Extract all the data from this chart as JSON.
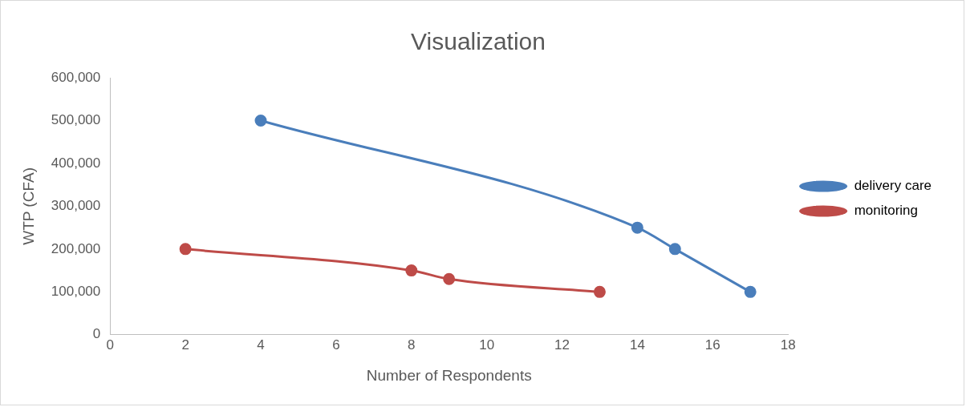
{
  "chart_data": {
    "type": "line",
    "title": "Visualization",
    "xlabel": "Number of Respondents",
    "ylabel": "WTP (CFA)",
    "xlim": [
      0,
      18
    ],
    "xticks": [
      0,
      2,
      4,
      6,
      8,
      10,
      12,
      14,
      16,
      18
    ],
    "ylim": [
      0,
      600000
    ],
    "yticks": [
      0,
      {
        "value": 100000,
        "label": "100,000"
      },
      {
        "value": 200000,
        "label": "200,000"
      },
      {
        "value": 300000,
        "label": "300,000"
      },
      {
        "value": 400000,
        "label": "400,000"
      },
      {
        "value": 500000,
        "label": "500,000"
      },
      {
        "value": 600000,
        "label": "600,000"
      }
    ],
    "grid": false,
    "legend": "right",
    "marker": "circle",
    "line_style": "solid",
    "series": [
      {
        "name": "delivery care",
        "color": "#4a7ebb",
        "x": [
          4,
          14,
          15,
          17
        ],
        "values": [
          500000,
          250000,
          200000,
          100000
        ]
      },
      {
        "name": "monitoring",
        "color": "#be4b48",
        "x": [
          2,
          8,
          9,
          13
        ],
        "values": [
          200000,
          150000,
          130000,
          100000
        ]
      }
    ]
  }
}
